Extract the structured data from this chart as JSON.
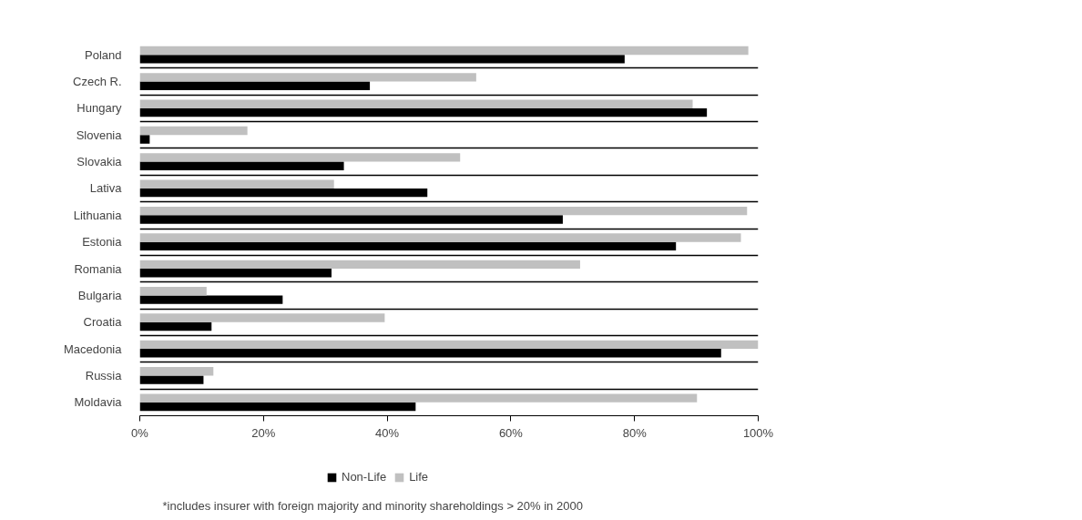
{
  "chart_data": {
    "type": "bar",
    "orientation": "horizontal",
    "categories": [
      "Poland",
      "Czech R.",
      "Hungary",
      "Slovenia",
      "Slovakia",
      "Lativa",
      "Lithuania",
      "Estonia",
      "Romania",
      "Bulgaria",
      "Croatia",
      "Macedonia",
      "Russia",
      "Moldavia"
    ],
    "series": [
      {
        "name": "Non-Life",
        "color": "#000000",
        "values": [
          78.4,
          37.2,
          91.7,
          1.6,
          33.0,
          46.5,
          68.4,
          86.7,
          31.0,
          23.1,
          11.6,
          94.0,
          10.3,
          44.6
        ]
      },
      {
        "name": "Life",
        "color": "#c0c0c0",
        "values": [
          98.4,
          54.4,
          89.4,
          17.4,
          51.8,
          31.4,
          98.2,
          97.2,
          71.2,
          10.8,
          39.6,
          100,
          11.9,
          90.1
        ]
      }
    ],
    "xlim": [
      0,
      100
    ],
    "xticks": [
      {
        "value": 0,
        "label": "0%"
      },
      {
        "value": 20,
        "label": "20%"
      },
      {
        "value": 40,
        "label": "40%"
      },
      {
        "value": 60,
        "label": "60%"
      },
      {
        "value": 80,
        "label": "80%"
      },
      {
        "value": 100,
        "label": "100%"
      }
    ],
    "grid": "y",
    "legend": "bottom",
    "annotations": [
      "*includes insurer with foreign majority and minority shareholdings > 20% in 2000"
    ]
  }
}
